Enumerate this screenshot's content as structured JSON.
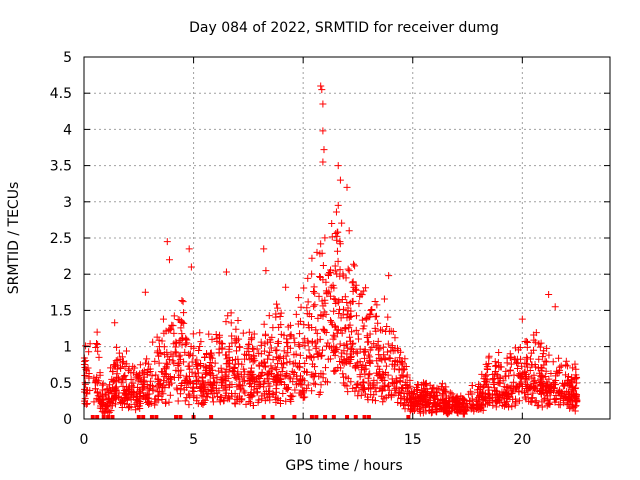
{
  "chart_data": {
    "type": "scatter",
    "title": "Day 084 of 2022, SRMTID for receiver dumg",
    "xlabel": "GPS time / hours",
    "ylabel": "SRMTID / TECUs",
    "xlim": [
      0,
      24
    ],
    "ylim": [
      0,
      5
    ],
    "x_ticks": [
      0,
      5,
      10,
      15,
      20
    ],
    "x_tick_labels": [
      "0",
      "5",
      "10",
      "15",
      "20"
    ],
    "y_ticks": [
      0,
      0.5,
      1,
      1.5,
      2,
      2.5,
      3,
      3.5,
      4,
      4.5,
      5
    ],
    "y_tick_labels": [
      "0",
      "0.5",
      "1",
      "1.5",
      "2",
      "2.5",
      "3",
      "3.5",
      "4",
      "4.5",
      "5"
    ],
    "grid": true,
    "marker": "plus",
    "series_color": "#ff0000",
    "envelope": {
      "hours": [
        0,
        0.5,
        1.0,
        1.5,
        2.0,
        2.5,
        3.0,
        3.5,
        4.0,
        4.5,
        5.0,
        5.5,
        6.0,
        6.5,
        7.0,
        7.5,
        8.0,
        8.5,
        9.0,
        9.5,
        10.0,
        10.5,
        11.0,
        11.5,
        12.0,
        12.5,
        13.0,
        13.5,
        14.0,
        14.5,
        15.0,
        15.5,
        16.0,
        16.5,
        17.0,
        17.5,
        18.0,
        18.5,
        19.0,
        19.5,
        20.0,
        20.5,
        21.0,
        21.5,
        22.0,
        22.5
      ],
      "typical_srmtid": [
        0.5,
        0.7,
        0.2,
        0.6,
        0.5,
        0.4,
        0.6,
        0.7,
        0.8,
        0.9,
        0.7,
        0.6,
        0.7,
        0.8,
        0.7,
        0.7,
        0.6,
        0.8,
        0.8,
        0.8,
        1.0,
        1.1,
        1.5,
        1.7,
        1.3,
        1.1,
        0.9,
        0.9,
        0.8,
        0.5,
        0.3,
        0.3,
        0.25,
        0.25,
        0.2,
        0.25,
        0.3,
        0.5,
        0.5,
        0.5,
        0.7,
        0.7,
        0.6,
        0.5,
        0.5,
        0.4
      ]
    },
    "peaks": [
      {
        "x": 0.05,
        "y": 0.5
      },
      {
        "x": 0.6,
        "y": 1.2
      },
      {
        "x": 1.4,
        "y": 1.33
      },
      {
        "x": 2.8,
        "y": 1.75
      },
      {
        "x": 3.8,
        "y": 2.45
      },
      {
        "x": 3.9,
        "y": 2.2
      },
      {
        "x": 4.8,
        "y": 2.35
      },
      {
        "x": 4.9,
        "y": 2.1
      },
      {
        "x": 6.5,
        "y": 2.03
      },
      {
        "x": 8.2,
        "y": 2.35
      },
      {
        "x": 8.3,
        "y": 2.05
      },
      {
        "x": 9.2,
        "y": 1.82
      },
      {
        "x": 10.4,
        "y": 2.22
      },
      {
        "x": 10.8,
        "y": 4.6
      },
      {
        "x": 10.85,
        "y": 4.55
      },
      {
        "x": 10.9,
        "y": 4.35
      },
      {
        "x": 10.9,
        "y": 3.98
      },
      {
        "x": 10.95,
        "y": 3.72
      },
      {
        "x": 10.9,
        "y": 3.55
      },
      {
        "x": 11.6,
        "y": 3.5
      },
      {
        "x": 11.7,
        "y": 3.3
      },
      {
        "x": 12.0,
        "y": 3.2
      },
      {
        "x": 11.6,
        "y": 2.95
      },
      {
        "x": 12.1,
        "y": 2.6
      },
      {
        "x": 12.1,
        "y": 2.05
      },
      {
        "x": 13.9,
        "y": 1.98
      },
      {
        "x": 20.0,
        "y": 1.38
      },
      {
        "x": 21.2,
        "y": 1.72
      },
      {
        "x": 21.5,
        "y": 1.55
      },
      {
        "x": 12.15,
        "y": 1.42
      }
    ],
    "zero_markers_hours": [
      0.4,
      0.6,
      0.9,
      1.1,
      1.3,
      2.5,
      2.7,
      3.1,
      3.3,
      4.2,
      4.4,
      5.0,
      5.8,
      8.2,
      8.6,
      9.6,
      10.4,
      10.6,
      11.0,
      11.4,
      12.0,
      12.4,
      12.8,
      13.0,
      14.8
    ]
  }
}
